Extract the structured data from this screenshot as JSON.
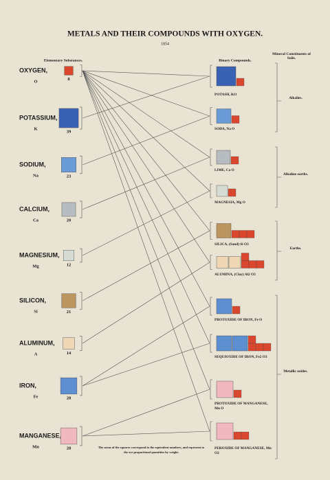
{
  "title": "METALS AND THEIR COMPOUNDS WITH OXYGEN.",
  "year": "1854",
  "headers": {
    "elements": "Elementary Substances.",
    "compounds": "Binary Compounds.",
    "minerals": "Mineral Constituents of Soils."
  },
  "elements": [
    {
      "name": "OXYGEN,",
      "symbol": "O",
      "number": 8,
      "color": "#d9482e"
    },
    {
      "name": "POTASSIUM,",
      "symbol": "K",
      "number": 39,
      "color": "#3a62b4"
    },
    {
      "name": "SODIUM,",
      "symbol": "Na",
      "number": 23,
      "color": "#6a9bd6"
    },
    {
      "name": "CALCIUM,",
      "symbol": "Ca",
      "number": 20,
      "color": "#b7bcc0"
    },
    {
      "name": "MAGNESIUM,",
      "symbol": "Mg",
      "number": 12,
      "color": "#d6dcd3"
    },
    {
      "name": "SILICON,",
      "symbol": "Si",
      "number": 21,
      "color": "#bb9660"
    },
    {
      "name": "ALUMINUM,",
      "symbol": "A",
      "number": 14,
      "color": "#efd6b4"
    },
    {
      "name": "IRON,",
      "symbol": "Fe",
      "number": 28,
      "color": "#5d8fd0"
    },
    {
      "name": "MANGANESE,",
      "symbol": "Mn",
      "number": 28,
      "color": "#f1b8c0"
    }
  ],
  "compounds": [
    {
      "label": "POTASH, KO"
    },
    {
      "label": "SODA, Na O"
    },
    {
      "label": "LIME, Ca O"
    },
    {
      "label": "MAGNESIA, Mg O"
    },
    {
      "label": "SILICA, (Sand) Si O3"
    },
    {
      "label": "ALUMINA, (Clay) Al2 O3"
    },
    {
      "label": "PROTOXIDE OF IRON, Fe O"
    },
    {
      "label": "SEQUIOXIDE OF IRON, Fe2 O3"
    },
    {
      "label": "PROTOXIDE OF MANGANESE, Mn O"
    },
    {
      "label": "PEROXIDE OF MANGANESE, Mn O2"
    }
  ],
  "groups": [
    "Alkalies.",
    "Alkaline earths.",
    "Earths.",
    "Metallic oxides."
  ],
  "footnote": "The areas of the squares correspond to the equivalent numbers, and represent to the eye proportional quantities by weight."
}
